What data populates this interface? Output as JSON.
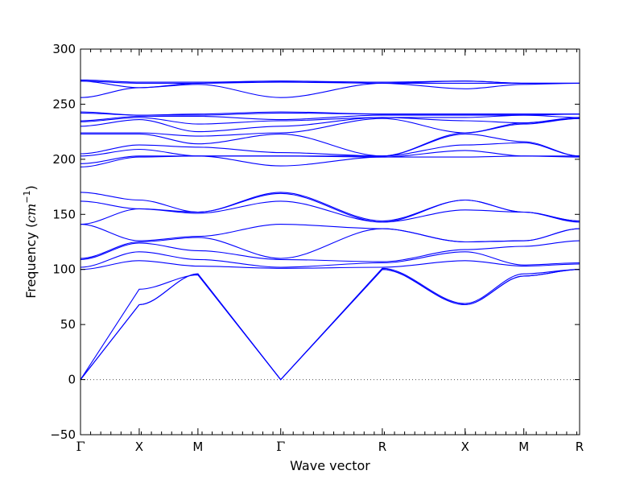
{
  "chart_data": {
    "type": "line",
    "ylabel_text": "Frequency (",
    "ylabel_unit_base": "cm",
    "ylabel_unit_exp": "−1",
    "ylabel_close": ")",
    "xlabel": "Wave vector",
    "ylim": [
      -50,
      300
    ],
    "yticks": [
      -50,
      0,
      50,
      100,
      150,
      200,
      250,
      300
    ],
    "ytick_labels": [
      "−50",
      "0",
      "50",
      "100",
      "150",
      "200",
      "250",
      "300"
    ],
    "xlim": [
      0,
      8.5
    ],
    "high_symmetry_points": [
      {
        "label": "Γ",
        "x": 0
      },
      {
        "label": "X",
        "x": 1
      },
      {
        "label": "M",
        "x": 2
      },
      {
        "label": "Γ",
        "x": 3.41
      },
      {
        "label": "R",
        "x": 5.14
      },
      {
        "label": "X",
        "x": 6.55
      },
      {
        "label": "M",
        "x": 7.55
      },
      {
        "label": "R",
        "x": 8.5
      }
    ],
    "zero_line": true,
    "grid": false,
    "line_color": "#0000ff",
    "zero_line_color": "#555555",
    "bands": [
      [
        0,
        68,
        96,
        0,
        100,
        68,
        94,
        100
      ],
      [
        0,
        68,
        96,
        0,
        100,
        68,
        94,
        100
      ],
      [
        0,
        82,
        95,
        0,
        101,
        69,
        96,
        100
      ],
      [
        100,
        108,
        103,
        101,
        102,
        108,
        103,
        105
      ],
      [
        102,
        116,
        109,
        102,
        106,
        116,
        104,
        106
      ],
      [
        109,
        124,
        117,
        109,
        107,
        118,
        121,
        126
      ],
      [
        110,
        125,
        129,
        110,
        137,
        125,
        126,
        137
      ],
      [
        141,
        126,
        130,
        141,
        137,
        125,
        126,
        137
      ],
      [
        141,
        155,
        151,
        162,
        143,
        154,
        152,
        143
      ],
      [
        162,
        155,
        152,
        169,
        143,
        163,
        152,
        144
      ],
      [
        170,
        163,
        152,
        170,
        144,
        163,
        152,
        144
      ],
      [
        193,
        202,
        203,
        194,
        202,
        202,
        203,
        202
      ],
      [
        196,
        203,
        203,
        203,
        202,
        208,
        203,
        203
      ],
      [
        203,
        209,
        203,
        203,
        203,
        213,
        215,
        203
      ],
      [
        205,
        213,
        211,
        206,
        203,
        223,
        216,
        203
      ],
      [
        223,
        223,
        214,
        223,
        203,
        224,
        232,
        237
      ],
      [
        224,
        224,
        221,
        224,
        237,
        224,
        233,
        237
      ],
      [
        230,
        236,
        225,
        230,
        238,
        235,
        233,
        238
      ],
      [
        234,
        238,
        232,
        235,
        238,
        238,
        240,
        238
      ],
      [
        235,
        239,
        239,
        236,
        240,
        240,
        240,
        241
      ],
      [
        242,
        240,
        240,
        242,
        241,
        241,
        241,
        241
      ],
      [
        243,
        240,
        241,
        243,
        241,
        241,
        241,
        241
      ],
      [
        256,
        265,
        268,
        256,
        269,
        264,
        268,
        269
      ],
      [
        271,
        265,
        269,
        270,
        269,
        269,
        269,
        269
      ],
      [
        271,
        269,
        269,
        271,
        269,
        271,
        269,
        269
      ],
      [
        272,
        270,
        270,
        271,
        270,
        271,
        269,
        269
      ]
    ]
  }
}
